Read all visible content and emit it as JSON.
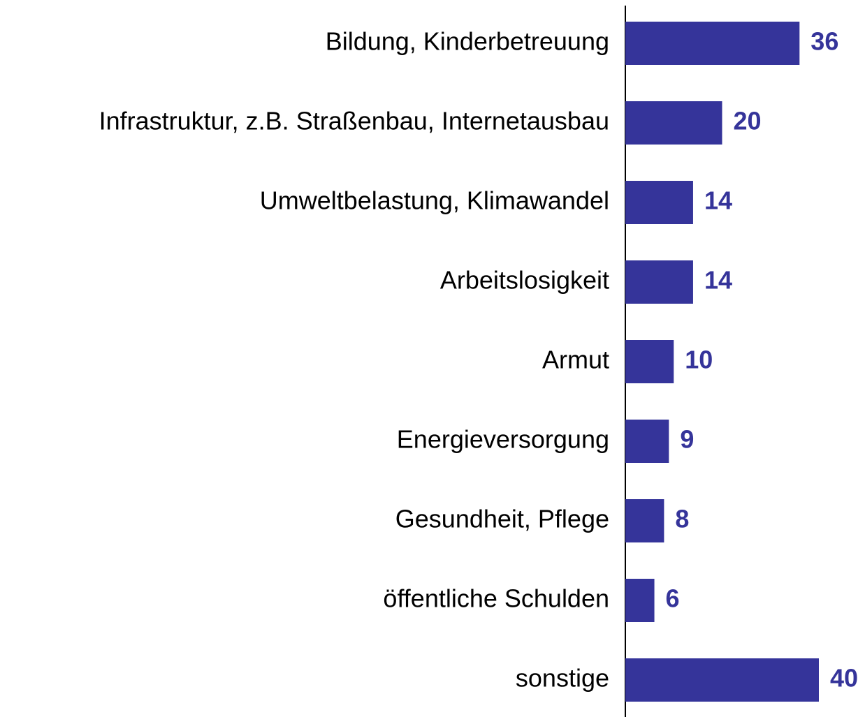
{
  "chart_data": {
    "type": "bar",
    "orientation": "horizontal",
    "categories": [
      "Bildung, Kinderbetreuung",
      "Infrastruktur, z.B. Straßenbau, Internetausbau",
      "Umweltbelastung, Klimawandel",
      "Arbeitslosigkeit",
      "Armut",
      "Energieversorgung",
      "Gesundheit, Pflege",
      "öffentliche Schulden",
      "sonstige"
    ],
    "values": [
      36,
      20,
      14,
      14,
      10,
      9,
      8,
      6,
      40
    ],
    "color": "#35349a"
  }
}
